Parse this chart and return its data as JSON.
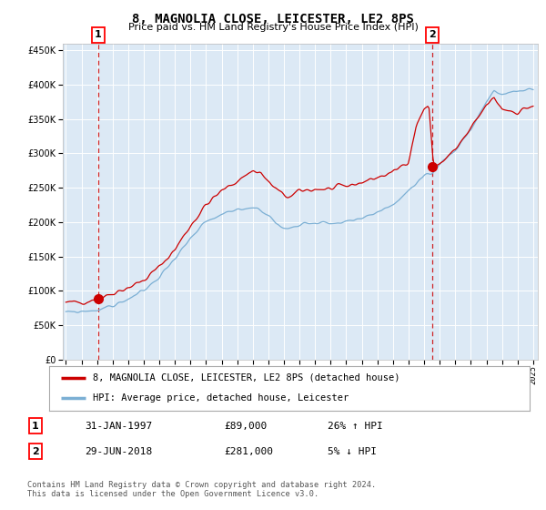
{
  "title": "8, MAGNOLIA CLOSE, LEICESTER, LE2 8PS",
  "subtitle": "Price paid vs. HM Land Registry's House Price Index (HPI)",
  "ylim": [
    0,
    460000
  ],
  "yticks": [
    0,
    50000,
    100000,
    150000,
    200000,
    250000,
    300000,
    350000,
    400000,
    450000
  ],
  "x_start_year": 1995,
  "x_end_year": 2025,
  "plot_bg_color": "#dce9f5",
  "red_line_color": "#cc0000",
  "blue_line_color": "#7bafd4",
  "purchase1_year": 1997.08,
  "purchase1_price": 89000,
  "purchase1_label": "1",
  "purchase2_year": 2018.5,
  "purchase2_price": 281000,
  "purchase2_label": "2",
  "legend_red_label": "8, MAGNOLIA CLOSE, LEICESTER, LE2 8PS (detached house)",
  "legend_blue_label": "HPI: Average price, detached house, Leicester",
  "annotation1_date": "31-JAN-1997",
  "annotation1_price": "£89,000",
  "annotation1_hpi": "26% ↑ HPI",
  "annotation2_date": "29-JUN-2018",
  "annotation2_price": "£281,000",
  "annotation2_hpi": "5% ↓ HPI",
  "footer": "Contains HM Land Registry data © Crown copyright and database right 2024.\nThis data is licensed under the Open Government Licence v3.0.",
  "red_key_years": [
    1995.0,
    1996.0,
    1997.0,
    1997.5,
    1998.0,
    1999.0,
    2000.0,
    2001.0,
    2002.0,
    2003.0,
    2004.0,
    2005.0,
    2006.0,
    2007.0,
    2007.5,
    2008.0,
    2008.5,
    2009.0,
    2009.5,
    2010.0,
    2011.0,
    2012.0,
    2013.0,
    2014.0,
    2015.0,
    2016.0,
    2017.0,
    2017.5,
    2018.0,
    2018.3,
    2018.6,
    2019.0,
    2020.0,
    2021.0,
    2022.0,
    2022.5,
    2023.0,
    2024.0,
    2025.0
  ],
  "red_key_vals": [
    82000,
    84000,
    88000,
    92000,
    97000,
    105000,
    115000,
    135000,
    160000,
    195000,
    225000,
    245000,
    260000,
    275000,
    272000,
    258000,
    248000,
    238000,
    237000,
    245000,
    248000,
    248000,
    252000,
    258000,
    265000,
    272000,
    290000,
    340000,
    365000,
    370000,
    281000,
    285000,
    305000,
    335000,
    370000,
    380000,
    365000,
    360000,
    370000
  ],
  "blue_key_years": [
    1995.0,
    1996.0,
    1997.0,
    1998.0,
    1999.0,
    2000.0,
    2001.0,
    2002.0,
    2003.0,
    2004.0,
    2005.0,
    2006.0,
    2007.0,
    2007.5,
    2008.0,
    2008.5,
    2009.0,
    2009.5,
    2010.0,
    2011.0,
    2012.0,
    2013.0,
    2014.0,
    2015.0,
    2016.0,
    2017.0,
    2018.0,
    2018.5,
    2019.0,
    2020.0,
    2021.0,
    2022.0,
    2022.5,
    2023.0,
    2024.0,
    2025.0
  ],
  "blue_key_vals": [
    68000,
    70000,
    72000,
    78000,
    88000,
    100000,
    120000,
    148000,
    175000,
    200000,
    210000,
    218000,
    222000,
    218000,
    210000,
    198000,
    190000,
    192000,
    198000,
    200000,
    198000,
    200000,
    205000,
    215000,
    225000,
    245000,
    265000,
    270000,
    285000,
    305000,
    335000,
    375000,
    390000,
    385000,
    390000,
    395000
  ]
}
